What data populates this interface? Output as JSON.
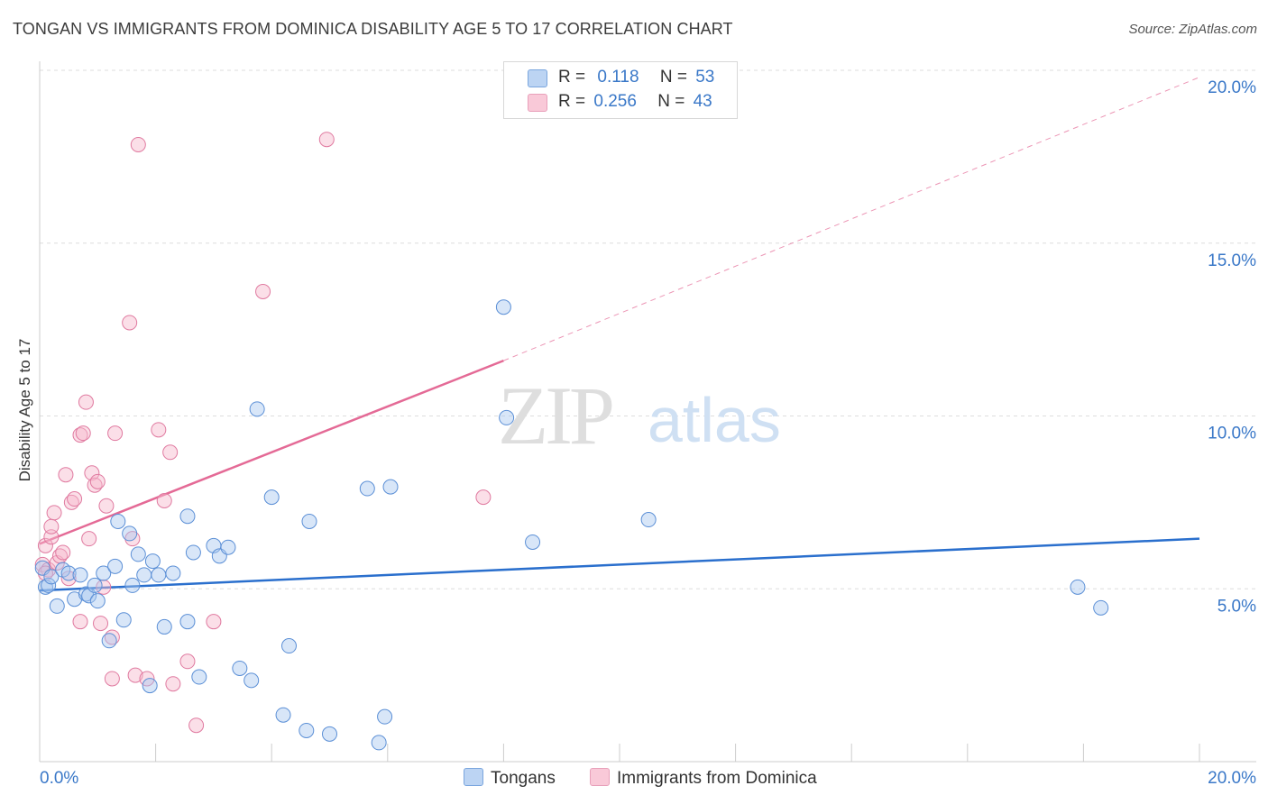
{
  "title": "TONGAN VS IMMIGRANTS FROM DOMINICA DISABILITY AGE 5 TO 17 CORRELATION CHART",
  "source": "Source: ZipAtlas.com",
  "watermark": {
    "zip": "ZIP",
    "atlas": "atlas"
  },
  "legend": {
    "rows": [
      {
        "r_label": "R =",
        "r_value": "0.118",
        "n_label": "N =",
        "n_value": "53"
      },
      {
        "r_label": "R =",
        "r_value": "0.256",
        "n_label": "N =",
        "n_value": "43"
      }
    ]
  },
  "colors": {
    "tongans_fill": "#a9c8f0",
    "tongans_stroke": "#5b8fd6",
    "tongans_line": "#2a6fcd",
    "dominica_fill": "#f7b8cc",
    "dominica_stroke": "#e07aa0",
    "dominica_line": "#e46a96",
    "tick_label": "#3a78c8",
    "grid": "#dddddd"
  },
  "chart_data": {
    "type": "scatter",
    "title": "TONGAN VS IMMIGRANTS FROM DOMINICA DISABILITY AGE 5 TO 17 CORRELATION CHART",
    "xlabel": "",
    "ylabel": "Disability Age 5 to 17",
    "xlim": [
      0,
      20
    ],
    "ylim": [
      0,
      20
    ],
    "x_tick_labels": [
      "0.0%",
      "20.0%"
    ],
    "y_ticks": [
      5,
      10,
      15,
      20
    ],
    "y_tick_labels": [
      "5.0%",
      "10.0%",
      "15.0%",
      "20.0%"
    ],
    "grid": "horizontal dashed",
    "legend_position": "bottom",
    "series": [
      {
        "name": "Tongans",
        "points": [
          [
            0.05,
            5.6
          ],
          [
            0.1,
            5.05
          ],
          [
            0.15,
            5.1
          ],
          [
            0.2,
            5.35
          ],
          [
            0.3,
            4.5
          ],
          [
            0.4,
            5.55
          ],
          [
            0.5,
            5.45
          ],
          [
            0.6,
            4.7
          ],
          [
            0.7,
            5.4
          ],
          [
            0.8,
            4.85
          ],
          [
            0.85,
            4.8
          ],
          [
            0.95,
            5.1
          ],
          [
            1.0,
            4.65
          ],
          [
            1.1,
            5.45
          ],
          [
            1.2,
            3.5
          ],
          [
            1.3,
            5.65
          ],
          [
            1.35,
            6.95
          ],
          [
            1.45,
            4.1
          ],
          [
            1.55,
            6.6
          ],
          [
            1.6,
            5.1
          ],
          [
            1.7,
            6.0
          ],
          [
            1.8,
            5.4
          ],
          [
            1.9,
            2.2
          ],
          [
            1.95,
            5.8
          ],
          [
            2.05,
            5.4
          ],
          [
            2.15,
            3.9
          ],
          [
            2.3,
            5.45
          ],
          [
            2.55,
            4.05
          ],
          [
            2.55,
            7.1
          ],
          [
            2.65,
            6.05
          ],
          [
            2.75,
            2.45
          ],
          [
            3.0,
            6.25
          ],
          [
            3.1,
            5.95
          ],
          [
            3.25,
            6.2
          ],
          [
            3.45,
            2.7
          ],
          [
            3.65,
            2.35
          ],
          [
            3.75,
            10.2
          ],
          [
            4.0,
            7.65
          ],
          [
            4.2,
            1.35
          ],
          [
            4.3,
            3.35
          ],
          [
            4.65,
            6.95
          ],
          [
            4.6,
            0.9
          ],
          [
            5.0,
            0.8
          ],
          [
            5.65,
            7.9
          ],
          [
            5.85,
            0.55
          ],
          [
            5.95,
            1.3
          ],
          [
            6.05,
            7.95
          ],
          [
            8.0,
            13.15
          ],
          [
            8.05,
            9.95
          ],
          [
            8.5,
            6.35
          ],
          [
            10.5,
            7.0
          ],
          [
            17.9,
            5.05
          ],
          [
            18.3,
            4.45
          ]
        ],
        "trend": {
          "x": [
            0,
            20
          ],
          "y": [
            4.95,
            6.45
          ]
        }
      },
      {
        "name": "Immigrants from Dominica",
        "points": [
          [
            0.05,
            5.7
          ],
          [
            0.1,
            6.25
          ],
          [
            0.15,
            5.55
          ],
          [
            0.2,
            6.5
          ],
          [
            0.25,
            7.2
          ],
          [
            0.3,
            5.75
          ],
          [
            0.35,
            5.95
          ],
          [
            0.4,
            6.05
          ],
          [
            0.45,
            8.3
          ],
          [
            0.5,
            5.3
          ],
          [
            0.55,
            7.5
          ],
          [
            0.6,
            7.6
          ],
          [
            0.7,
            4.05
          ],
          [
            0.7,
            9.45
          ],
          [
            0.75,
            9.5
          ],
          [
            0.8,
            10.4
          ],
          [
            0.85,
            6.45
          ],
          [
            0.9,
            8.35
          ],
          [
            0.95,
            8.0
          ],
          [
            1.0,
            8.1
          ],
          [
            1.05,
            4.0
          ],
          [
            1.1,
            5.05
          ],
          [
            1.15,
            7.4
          ],
          [
            1.25,
            3.6
          ],
          [
            1.25,
            2.4
          ],
          [
            1.3,
            9.5
          ],
          [
            1.55,
            12.7
          ],
          [
            1.6,
            6.45
          ],
          [
            1.65,
            2.5
          ],
          [
            1.7,
            17.85
          ],
          [
            1.85,
            2.4
          ],
          [
            2.05,
            9.6
          ],
          [
            2.15,
            7.55
          ],
          [
            2.25,
            8.95
          ],
          [
            2.3,
            2.25
          ],
          [
            2.55,
            2.9
          ],
          [
            2.7,
            1.05
          ],
          [
            3.0,
            4.05
          ],
          [
            3.85,
            13.6
          ],
          [
            4.95,
            18.0
          ],
          [
            7.65,
            7.65
          ],
          [
            0.2,
            6.8
          ],
          [
            0.1,
            5.45
          ]
        ],
        "trend": {
          "x": [
            0,
            8.0
          ],
          "y": [
            6.3,
            11.6
          ]
        },
        "trend_extension": {
          "x": [
            8.0,
            20
          ],
          "y": [
            11.6,
            19.8
          ]
        }
      }
    ]
  },
  "bottom_legend": [
    {
      "name": "Tongans"
    },
    {
      "name": "Immigrants from Dominica"
    }
  ]
}
